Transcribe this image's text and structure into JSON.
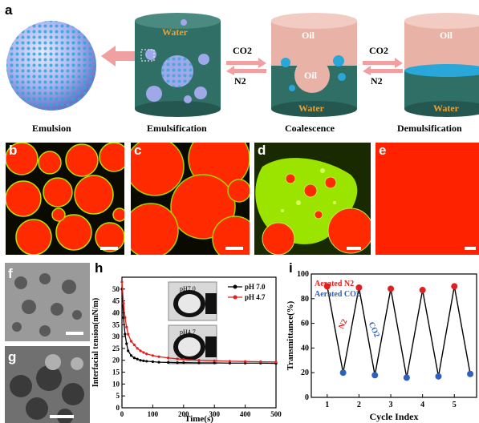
{
  "panel_labels": {
    "a": "a",
    "b": "b",
    "c": "c",
    "d": "d",
    "e": "e",
    "f": "f",
    "g": "g",
    "h": "h",
    "i": "i"
  },
  "schematic": {
    "captions": [
      "Emulsion",
      "Emulsification",
      "Coalescence",
      "Demulsification"
    ],
    "water": "Water",
    "oil": "Oil",
    "gas_forward": "CO2",
    "gas_back": "N2"
  },
  "colors": {
    "emulsion": "#c0c8ff",
    "emulsion_particle": "#2aa7d9",
    "water_cyl": "#2f6f66",
    "oil_cyl": "#e8b3a6",
    "micro_red": "#ff2200",
    "micro_green": "#9ae400",
    "black_series": "#000000",
    "red_series": "#e02020",
    "blue_marker": "#2f5fbf"
  },
  "chart_data": [
    {
      "type": "line",
      "panel": "h",
      "xlabel": "Time(s)",
      "ylabel": "Interfacial tension(mN/m)",
      "xlim": [
        0,
        500
      ],
      "ylim": [
        0,
        55
      ],
      "xticks": [
        0,
        100,
        200,
        300,
        400,
        500
      ],
      "yticks": [
        0,
        5,
        10,
        15,
        20,
        25,
        30,
        35,
        40,
        45,
        50
      ],
      "legend_position": "top-right",
      "inset_labels": [
        "pH7.0",
        "pH4.7"
      ],
      "series": [
        {
          "name": "pH 7.0",
          "color": "#000000",
          "x": [
            0,
            5,
            10,
            15,
            20,
            30,
            40,
            50,
            60,
            70,
            80,
            100,
            120,
            150,
            180,
            200,
            250,
            300,
            350,
            400,
            450,
            500
          ],
          "y": [
            50,
            38,
            31,
            27,
            24,
            22,
            21,
            20.5,
            20,
            19.8,
            19.6,
            19.4,
            19.2,
            19.1,
            19,
            19,
            18.9,
            18.9,
            18.8,
            18.8,
            18.8,
            18.7
          ]
        },
        {
          "name": "pH 4.7",
          "color": "#e02020",
          "x": [
            0,
            5,
            10,
            15,
            20,
            30,
            40,
            50,
            60,
            70,
            80,
            100,
            120,
            150,
            180,
            200,
            250,
            300,
            350,
            400,
            450,
            500
          ],
          "y": [
            53,
            44,
            38,
            34,
            31,
            28,
            26.5,
            25,
            24,
            23.3,
            22.7,
            22,
            21.5,
            21,
            20.6,
            20.4,
            20,
            19.8,
            19.6,
            19.5,
            19.4,
            19.3
          ]
        }
      ]
    },
    {
      "type": "line",
      "panel": "i",
      "xlabel": "Cycle Index",
      "ylabel": "Transmittance(%)",
      "xlim": [
        0.5,
        5.7
      ],
      "ylim": [
        0,
        100
      ],
      "xticks": [
        1,
        2,
        3,
        4,
        5
      ],
      "yticks": [
        0,
        20,
        40,
        60,
        80,
        100
      ],
      "legend": [
        {
          "name": "Aerated N2",
          "color": "#e02020"
        },
        {
          "name": "Aerated CO2",
          "color": "#2f5fbf"
        }
      ],
      "annotations": [
        "N2",
        "CO2"
      ],
      "series": [
        {
          "name": "Transmittance",
          "color": "#000000",
          "x": [
            1,
            1.5,
            2,
            2.5,
            3,
            3.5,
            4,
            4.5,
            5,
            5.5
          ],
          "y": [
            90,
            20,
            89,
            18,
            88,
            16,
            87,
            17,
            90,
            19
          ],
          "point_types": [
            "N2",
            "CO2",
            "N2",
            "CO2",
            "N2",
            "CO2",
            "N2",
            "CO2",
            "N2",
            "CO2"
          ]
        }
      ]
    }
  ]
}
